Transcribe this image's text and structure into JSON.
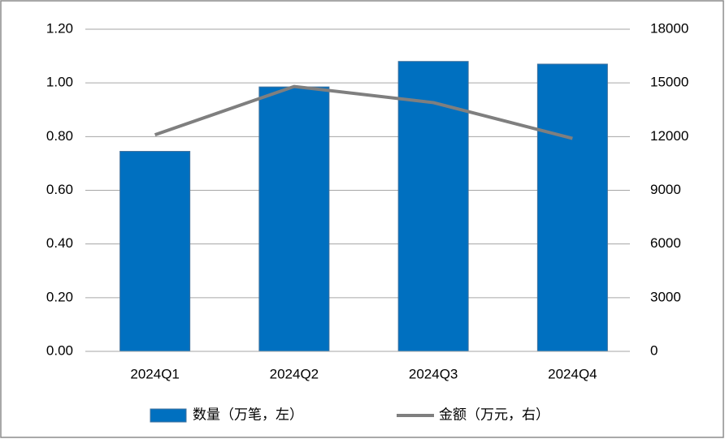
{
  "chart_data": {
    "type": "bar-line",
    "categories": [
      "2024Q1",
      "2024Q2",
      "2024Q3",
      "2024Q4"
    ],
    "series": [
      {
        "name": "数量（万笔，左）",
        "type": "bar",
        "color": "#0070c0",
        "values": [
          0.745,
          0.985,
          1.08,
          1.07
        ]
      },
      {
        "name": "金额（万元，右）",
        "type": "line",
        "axis": "y2",
        "color": "#7f7f7f",
        "values": [
          12100,
          14800,
          13900,
          11900
        ]
      }
    ],
    "ylim": [
      0,
      1.2
    ],
    "yticks": [
      {
        "value": 0,
        "label": "0.00"
      },
      {
        "value": 0.2,
        "label": "0.20"
      },
      {
        "value": 0.4,
        "label": "0.40"
      },
      {
        "value": 0.6,
        "label": "0.60"
      },
      {
        "value": 0.8,
        "label": "0.80"
      },
      {
        "value": 1.0,
        "label": "1.00"
      },
      {
        "value": 1.2,
        "label": "1.20"
      }
    ],
    "y2lim": [
      0,
      18000
    ],
    "y2ticks": [
      0,
      3000,
      6000,
      9000,
      12000,
      15000,
      18000
    ],
    "grid": true
  }
}
